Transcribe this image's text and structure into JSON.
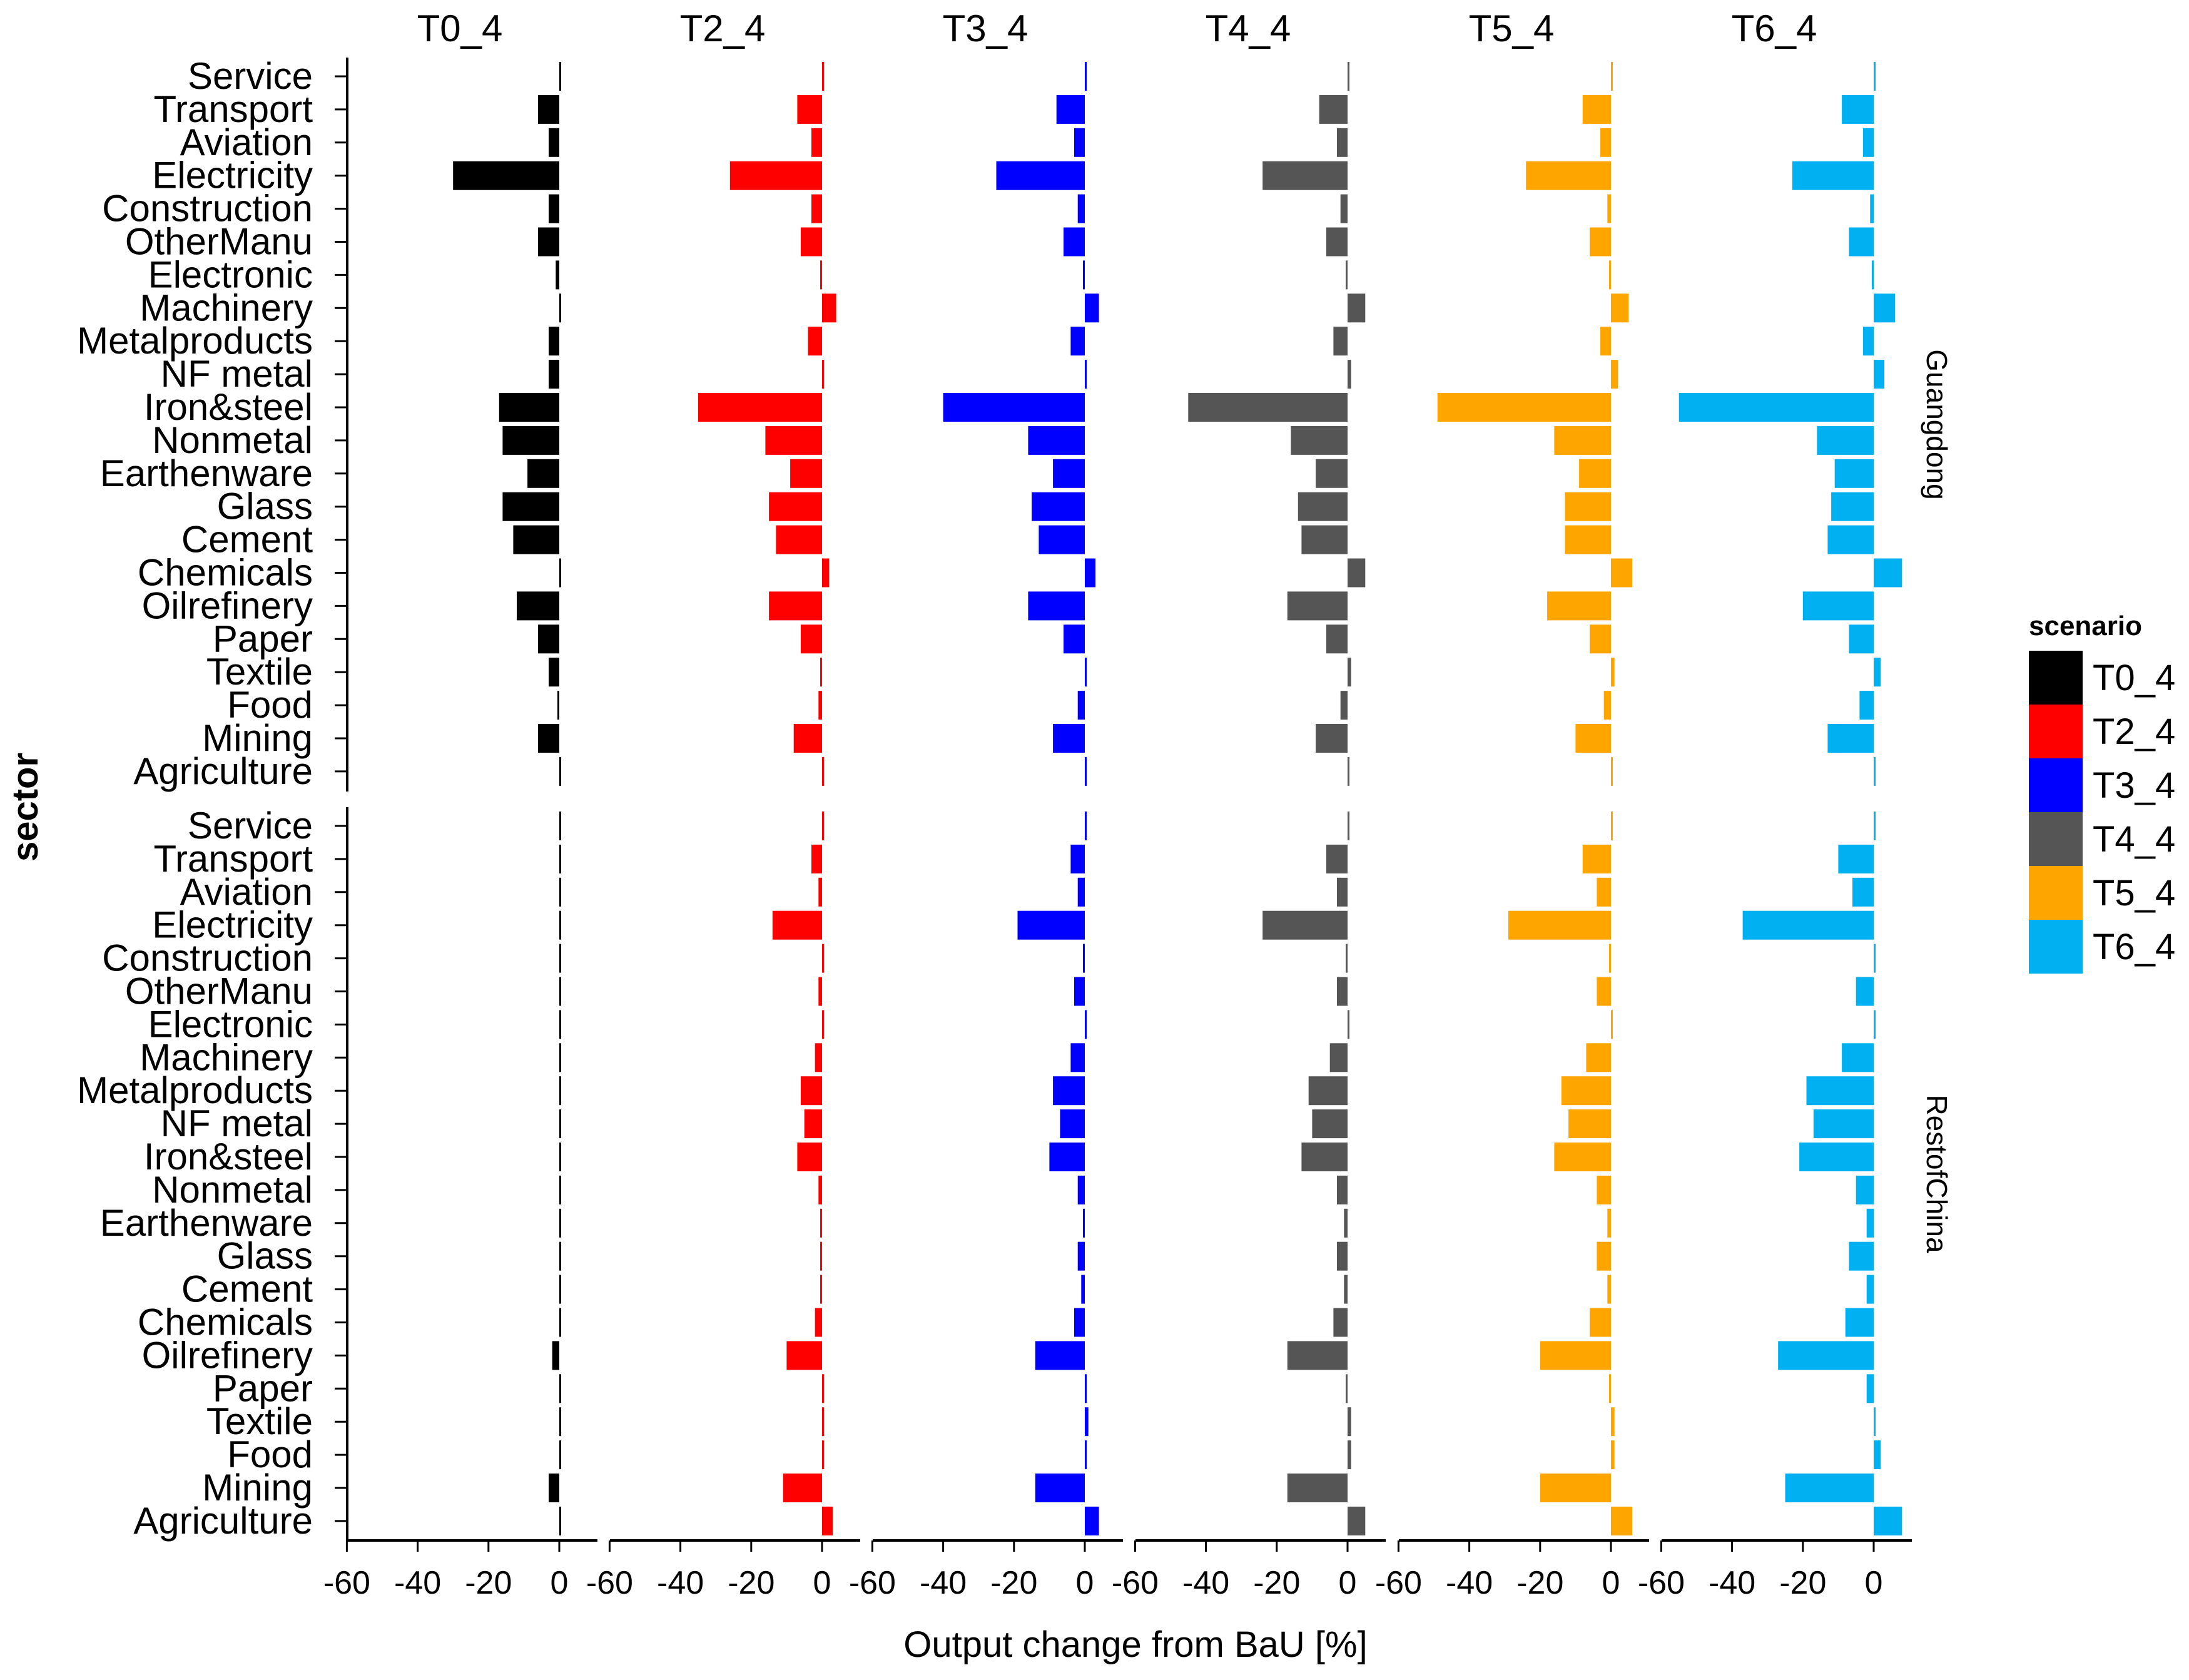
{
  "chart_data": {
    "type": "bar",
    "orientation": "horizontal",
    "xlabel": "Output change from BaU [%]",
    "ylabel": "sector",
    "xlim": [
      -60,
      10
    ],
    "x_ticks": [
      -60,
      -40,
      -20,
      0
    ],
    "x_tick_labels": [
      "-60",
      "-40",
      "-20",
      "0"
    ],
    "legend": {
      "title": "scenario",
      "entries": [
        "T0_4",
        "T2_4",
        "T3_4",
        "T4_4",
        "T5_4",
        "T6_4"
      ],
      "position": "right"
    },
    "colors": [
      "#000000",
      "#FF0000",
      "#0000FF",
      "#555555",
      "#FFA500",
      "#00B0F0"
    ],
    "scenarios": [
      "T0_4",
      "T2_4",
      "T3_4",
      "T4_4",
      "T5_4",
      "T6_4"
    ],
    "regions": [
      "Guangdong",
      "RestofChina"
    ],
    "sectors": [
      "Service",
      "Transport",
      "Aviation",
      "Electricity",
      "Construction",
      "OtherManu",
      "Electronic",
      "Machinery",
      "Metalproducts",
      "NF metal",
      "Iron&steel",
      "Nonmetal",
      "Earthenware",
      "Glass",
      "Cement",
      "Chemicals",
      "Oilrefinery",
      "Paper",
      "Textile",
      "Food",
      "Mining",
      "Agriculture"
    ],
    "series": [
      {
        "scenario": "T0_4",
        "region": "Guangdong",
        "values": [
          0.5,
          -6,
          -3,
          -30,
          -3,
          -6,
          -1,
          0.5,
          -3,
          -3,
          -17,
          -16,
          -9,
          -16,
          -13,
          0,
          -12,
          -6,
          -3,
          -0.5,
          -6,
          0
        ]
      },
      {
        "scenario": "T2_4",
        "region": "Guangdong",
        "values": [
          0,
          -7,
          -3,
          -26,
          -3,
          -6,
          -0.5,
          4,
          -4,
          0,
          -35,
          -16,
          -9,
          -15,
          -13,
          2,
          -15,
          -6,
          -0.5,
          -1,
          -8,
          0
        ]
      },
      {
        "scenario": "T3_4",
        "region": "Guangdong",
        "values": [
          0,
          -8,
          -3,
          -25,
          -2,
          -6,
          -0.5,
          4,
          -4,
          0.5,
          -40,
          -16,
          -9,
          -15,
          -13,
          3,
          -16,
          -6,
          0,
          -2,
          -9,
          0
        ]
      },
      {
        "scenario": "T4_4",
        "region": "Guangdong",
        "values": [
          0,
          -8,
          -3,
          -24,
          -2,
          -6,
          -0.5,
          5,
          -4,
          1,
          -45,
          -16,
          -9,
          -14,
          -13,
          5,
          -17,
          -6,
          1,
          -2,
          -9,
          0
        ]
      },
      {
        "scenario": "T5_4",
        "region": "Guangdong",
        "values": [
          0,
          -8,
          -3,
          -24,
          -1,
          -6,
          -0.5,
          5,
          -3,
          2,
          -49,
          -16,
          -9,
          -13,
          -13,
          6,
          -18,
          -6,
          1,
          -2,
          -10,
          0
        ]
      },
      {
        "scenario": "T6_4",
        "region": "Guangdong",
        "values": [
          0.5,
          -9,
          -3,
          -23,
          -1,
          -7,
          -0.5,
          6,
          -3,
          3,
          -55,
          -16,
          -11,
          -12,
          -13,
          8,
          -20,
          -7,
          2,
          -4,
          -13,
          0.5
        ]
      },
      {
        "scenario": "T0_4",
        "region": "RestofChina",
        "values": [
          0,
          0,
          0,
          0,
          0,
          0,
          0,
          0,
          0,
          0,
          0,
          0,
          0,
          0.5,
          0,
          0,
          -2,
          0,
          0,
          0,
          -3,
          0
        ]
      },
      {
        "scenario": "T2_4",
        "region": "RestofChina",
        "values": [
          0.5,
          -3,
          -1,
          -14,
          0,
          -1,
          0.5,
          -2,
          -6,
          -5,
          -7,
          -1,
          -0.5,
          -0.5,
          -0.5,
          -2,
          -10,
          0,
          0.5,
          0.5,
          -11,
          3
        ]
      },
      {
        "scenario": "T3_4",
        "region": "RestofChina",
        "values": [
          0.5,
          -4,
          -2,
          -19,
          -0.5,
          -3,
          0.5,
          -4,
          -9,
          -7,
          -10,
          -2,
          -0.5,
          -2,
          -1,
          -3,
          -14,
          0,
          1,
          0.5,
          -14,
          4
        ]
      },
      {
        "scenario": "T4_4",
        "region": "RestofChina",
        "values": [
          0,
          -6,
          -3,
          -24,
          -0.5,
          -3,
          0,
          -5,
          -11,
          -10,
          -13,
          -3,
          -1,
          -3,
          -1,
          -4,
          -17,
          -0.5,
          1,
          1,
          -17,
          5
        ]
      },
      {
        "scenario": "T5_4",
        "region": "RestofChina",
        "values": [
          0.5,
          -8,
          -4,
          -29,
          -0.5,
          -4,
          0,
          -7,
          -14,
          -12,
          -16,
          -4,
          -1,
          -4,
          -1,
          -6,
          -20,
          -0.5,
          1,
          1,
          -20,
          6
        ]
      },
      {
        "scenario": "T6_4",
        "region": "RestofChina",
        "values": [
          0,
          -10,
          -6,
          -37,
          0,
          -5,
          0,
          -9,
          -19,
          -17,
          -21,
          -5,
          -2,
          -7,
          -2,
          -8,
          -27,
          -2,
          0.5,
          2,
          -25,
          8
        ]
      }
    ]
  }
}
